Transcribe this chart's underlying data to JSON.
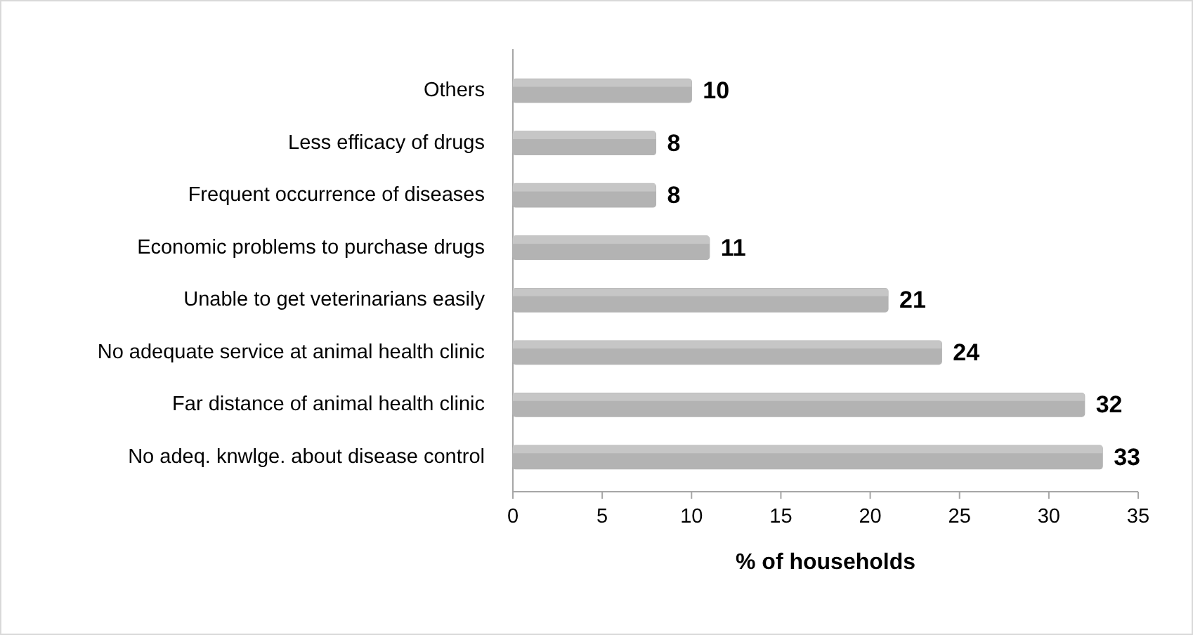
{
  "chart_data": {
    "type": "bar",
    "orientation": "horizontal",
    "xlabel": "% of households",
    "categories": [
      "Others",
      "Less efficacy of drugs",
      "Frequent occurrence of diseases",
      "Economic problems to purchase drugs",
      "Unable to get veterinarians easily",
      "No adequate service at animal health clinic",
      "Far distance of animal health clinic",
      "No adeq. knwlge. about disease control"
    ],
    "values": [
      10,
      8,
      8,
      11,
      21,
      24,
      32,
      33
    ],
    "color": "#b3b3b3",
    "xlim": [
      0,
      35
    ],
    "xticks": [
      0,
      5,
      10,
      15,
      20,
      25,
      30,
      35
    ],
    "data_labels": true,
    "grid": false
  }
}
